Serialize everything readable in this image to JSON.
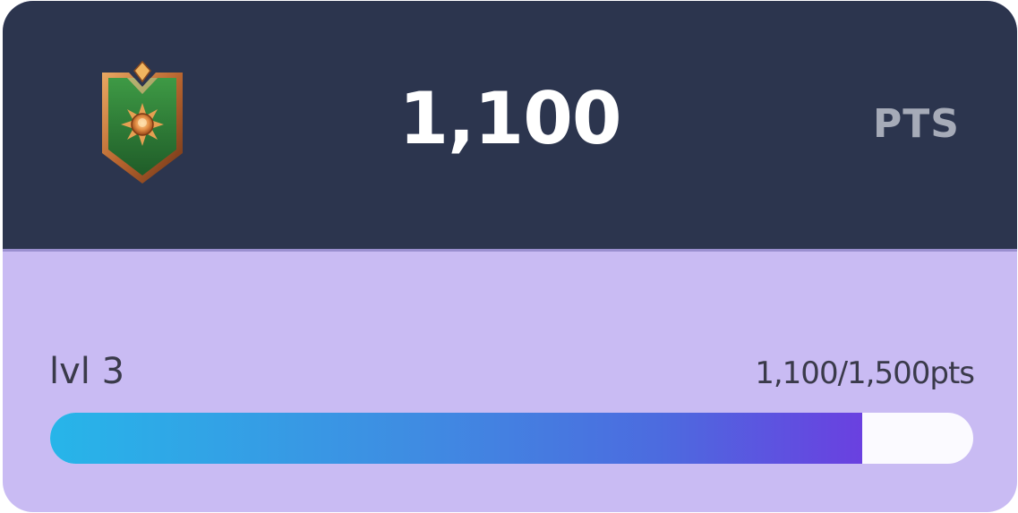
{
  "points": {
    "value": "1,100",
    "unit": "PTS",
    "badge_icon": "rank-shield-icon"
  },
  "level": {
    "label": "lvl 3",
    "progress_text": "1,100/1,500pts",
    "current_points": 1100,
    "next_level_points": 1500
  },
  "colors": {
    "header_bg": "#2c354e",
    "body_bg": "#c9bbf3",
    "progress_start": "#27b5e9",
    "progress_end": "#6a40e0",
    "track": "#fbfaff"
  }
}
